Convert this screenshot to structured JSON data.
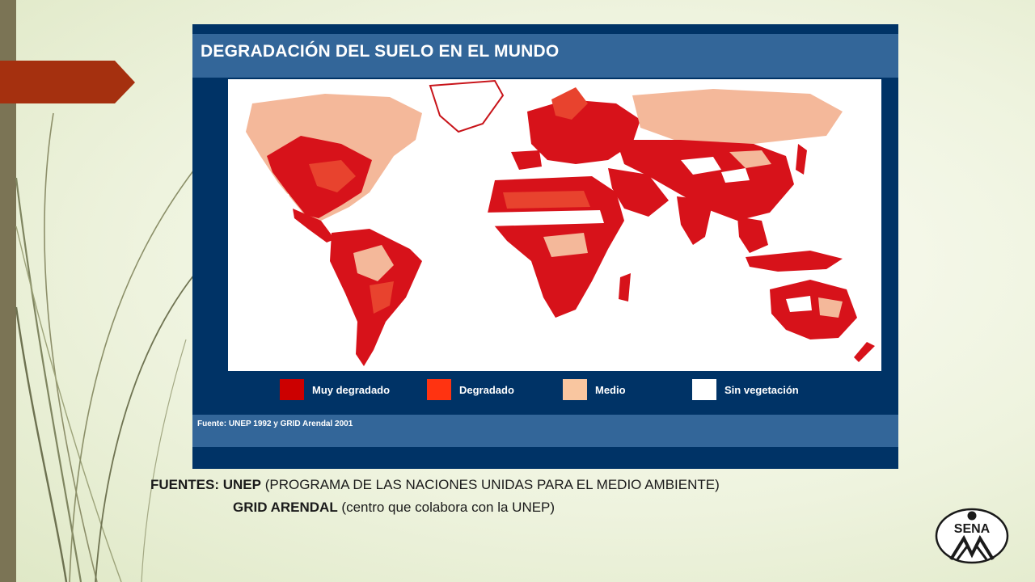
{
  "slide": {
    "accent_color": "#A5300F",
    "strip_color": "#7B7455"
  },
  "map": {
    "title": "DEGRADACIÓN DEL SUELO EN EL MUNDO",
    "source": "Fuente: UNEP 1992  y GRID Arendal 2001",
    "colors": {
      "panel": "#003366",
      "bars": "#336699",
      "muy_degradado": "#CC0000",
      "degradado": "#E8432E",
      "medio": "#F4B89A",
      "sin_vegetacion": "#FFFFFF"
    },
    "legend": [
      {
        "label": "Muy degradado",
        "color": "#CC0000"
      },
      {
        "label": "Degradado",
        "color": "#FF3311"
      },
      {
        "label": "Medio",
        "color": "#F9C6A0"
      },
      {
        "label": "Sin vegetación",
        "color": "#FFFFFF"
      }
    ]
  },
  "caption": {
    "line1_strong": "FUENTES: UNEP",
    "line1_rest": " (PROGRAMA DE LAS NACIONES UNIDAS PARA EL MEDIO AMBIENTE)",
    "line2_strong": "GRID ARENDAL",
    "line2_rest": " (centro que colabora con la UNEP)"
  },
  "logo": {
    "text": "SENA",
    "icon": "sena-logo-icon",
    "color": "#1A1A1A"
  }
}
